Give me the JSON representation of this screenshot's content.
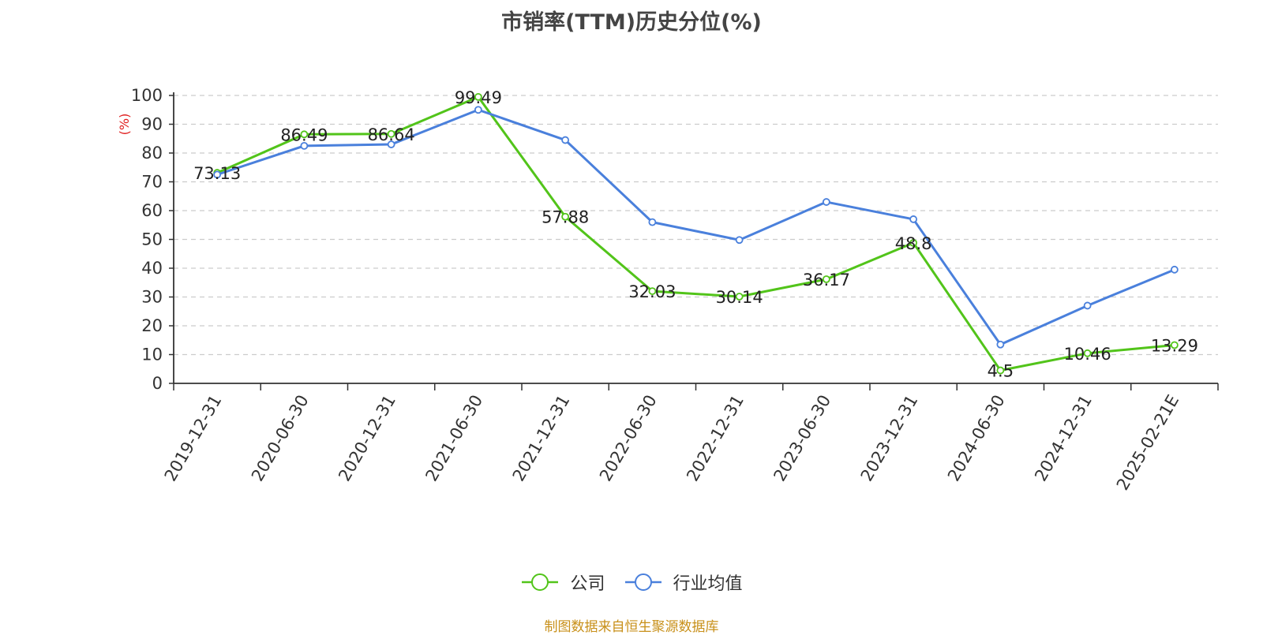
{
  "chart_data": {
    "type": "line",
    "title": "市销率(TTM)历史分位(%)",
    "ylabel": "(%)",
    "ylim": [
      0,
      100
    ],
    "yticks": [
      0,
      10,
      20,
      30,
      40,
      50,
      60,
      70,
      80,
      90,
      100
    ],
    "categories": [
      "2019-12-31",
      "2020-06-30",
      "2020-12-31",
      "2021-06-30",
      "2021-12-31",
      "2022-06-30",
      "2022-12-31",
      "2023-06-30",
      "2023-12-31",
      "2024-06-30",
      "2024-12-31",
      "2025-02-21E"
    ],
    "grid": true,
    "legend_position": "bottom",
    "series": [
      {
        "name": "公司",
        "color": "#52c41a",
        "labeled": true,
        "values": [
          73.13,
          86.49,
          86.64,
          99.49,
          57.88,
          32.03,
          30.14,
          36.17,
          48.8,
          4.5,
          10.46,
          13.29
        ],
        "value_labels": [
          "73.13",
          "86.49",
          "86.64",
          "99.49",
          "57.88",
          "32.03",
          "30.14",
          "36.17",
          "48.8",
          "4.5",
          "10.46",
          "13.29"
        ]
      },
      {
        "name": "行业均值",
        "color": "#4a80dc",
        "labeled": false,
        "values": [
          72.5,
          82.5,
          83,
          95,
          84.5,
          56,
          49.8,
          63,
          57,
          13.5,
          27,
          39.5
        ]
      }
    ]
  },
  "legend": {
    "items": [
      "公司",
      "行业均值"
    ]
  },
  "source": "制图数据来自恒生聚源数据库"
}
